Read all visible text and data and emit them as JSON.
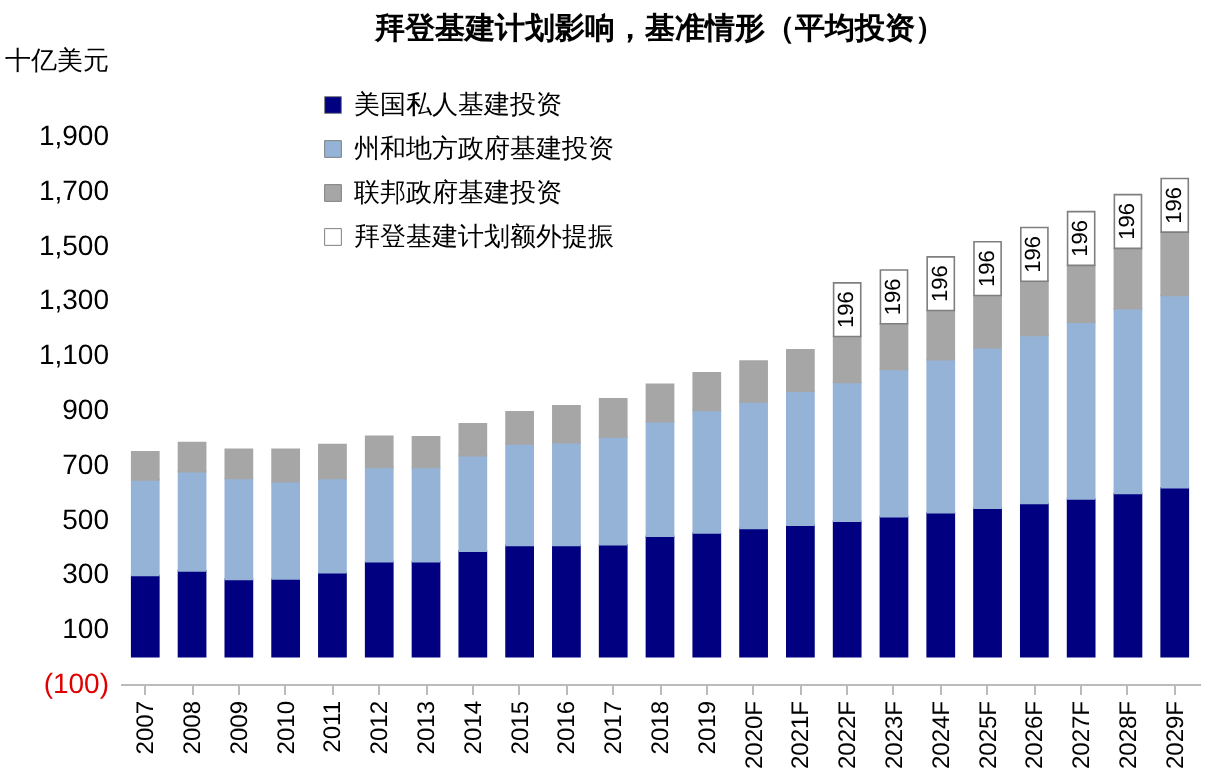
{
  "chart_data": {
    "type": "bar",
    "stacked": true,
    "title": "拜登基建计划影响，基准情形（平均投资）",
    "ylabel": "十亿美元",
    "categories": [
      "2007",
      "2008",
      "2009",
      "2010",
      "2011",
      "2012",
      "2013",
      "2014",
      "2015",
      "2016",
      "2017",
      "2018",
      "2019",
      "2020F",
      "2021F",
      "2022F",
      "2023F",
      "2024F",
      "2025F",
      "2026F",
      "2027F",
      "2028F",
      "2029F"
    ],
    "series": [
      {
        "name": "美国私人基建投资",
        "color": "#000080",
        "values": [
          296,
          313,
          282,
          283,
          306,
          346,
          346,
          385,
          406,
          406,
          408,
          439,
          451,
          468,
          480,
          494,
          511,
          525,
          542,
          559,
          575,
          595,
          616
        ]
      },
      {
        "name": "州和地方政府基建投资",
        "color": "#95b3d7",
        "values": [
          349,
          362,
          368,
          355,
          344,
          344,
          344,
          348,
          370,
          375,
          394,
          418,
          447,
          461,
          489,
          507,
          537,
          559,
          585,
          613,
          645,
          675,
          702
        ]
      },
      {
        "name": "联邦政府基建投资",
        "color": "#a6a6a6",
        "values": [
          102,
          106,
          107,
          119,
          124,
          114,
          112,
          117,
          117,
          134,
          139,
          137,
          138,
          150,
          151,
          167,
          167,
          179,
          191,
          198,
          208,
          220,
          231
        ]
      },
      {
        "name": "拜登基建计划额外提振",
        "color": "#ffffff",
        "values": [
          null,
          null,
          null,
          null,
          null,
          null,
          null,
          null,
          null,
          null,
          null,
          null,
          null,
          null,
          null,
          196,
          196,
          196,
          196,
          196,
          196,
          196,
          196
        ],
        "value_labels": [
          null,
          null,
          null,
          null,
          null,
          null,
          null,
          null,
          null,
          null,
          null,
          null,
          null,
          null,
          null,
          "196",
          "196",
          "196",
          "196",
          "196",
          "196",
          "196",
          "196"
        ]
      }
    ],
    "ylim": [
      -100,
      1900
    ],
    "yticks": [
      {
        "value": -100,
        "label": "(100)"
      },
      100,
      300,
      500,
      700,
      900,
      {
        "value": 1100,
        "label": "1,100"
      },
      {
        "value": 1300,
        "label": "1,300"
      },
      {
        "value": 1500,
        "label": "1,500"
      },
      {
        "value": 1700,
        "label": "1,700"
      },
      {
        "value": 1900,
        "label": "1,900"
      }
    ],
    "grid": false,
    "legend": "top left"
  }
}
